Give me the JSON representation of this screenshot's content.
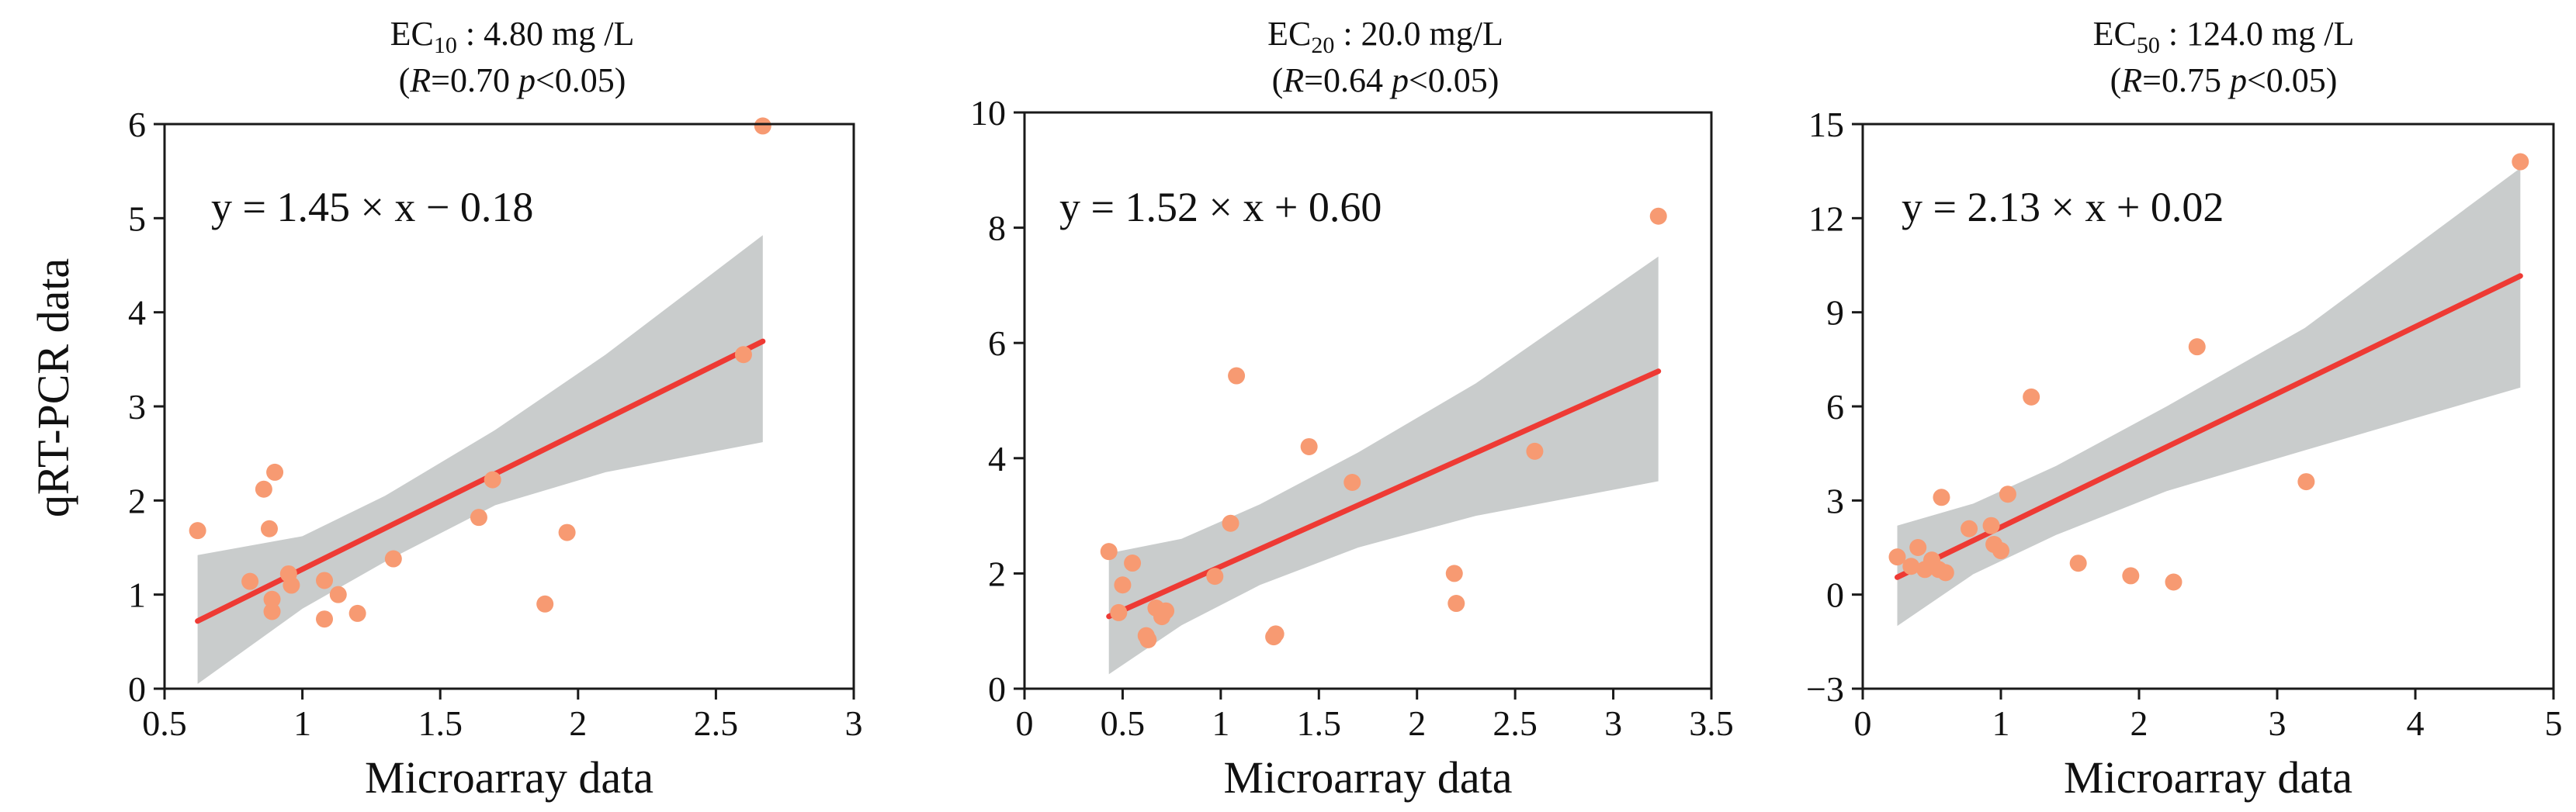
{
  "y_axis_label": "qRT-PCR data",
  "chart_data": [
    {
      "type": "scatter",
      "title_line1_main": "EC",
      "title_line1_sub": "10",
      "title_line1_rest": " : 4.80 mg /L",
      "title_line2_open": "(",
      "title_line2_R": "R",
      "title_line2_val": "=0.70  ",
      "title_line2_p": "p",
      "title_line2_end": "<0.05)",
      "equation": "y = 1.45 × x − 0.18",
      "slope": 1.45,
      "intercept": -0.18,
      "xlabel": "Microarray data",
      "xlim": [
        0.5,
        3
      ],
      "ylim": [
        0,
        6
      ],
      "xticks": [
        0.5,
        1,
        1.5,
        2,
        2.5,
        3
      ],
      "xtick_labels": [
        "0.5",
        "1",
        "1.5",
        "2",
        "2.5",
        "3"
      ],
      "yticks": [
        0,
        1,
        2,
        3,
        4,
        5,
        6
      ],
      "ytick_labels": [
        "0",
        "1",
        "2",
        "3",
        "4",
        "5",
        "6"
      ],
      "fit_x_range": [
        0.62,
        2.67
      ],
      "band": {
        "x": [
          0.62,
          1.0,
          1.3,
          1.7,
          2.1,
          2.67
        ],
        "lower": [
          0.05,
          0.85,
          1.35,
          1.95,
          2.3,
          2.62
        ],
        "upper": [
          1.42,
          1.62,
          2.05,
          2.75,
          3.55,
          4.82
        ]
      },
      "points": [
        {
          "x": 0.62,
          "y": 1.68
        },
        {
          "x": 0.81,
          "y": 1.14
        },
        {
          "x": 0.86,
          "y": 2.12
        },
        {
          "x": 0.88,
          "y": 1.7
        },
        {
          "x": 0.89,
          "y": 0.95
        },
        {
          "x": 0.89,
          "y": 0.82
        },
        {
          "x": 0.9,
          "y": 2.3
        },
        {
          "x": 0.95,
          "y": 1.22
        },
        {
          "x": 0.96,
          "y": 1.1
        },
        {
          "x": 1.08,
          "y": 1.15
        },
        {
          "x": 1.08,
          "y": 0.74
        },
        {
          "x": 1.13,
          "y": 1.0
        },
        {
          "x": 1.2,
          "y": 0.8
        },
        {
          "x": 1.33,
          "y": 1.38
        },
        {
          "x": 1.64,
          "y": 1.82
        },
        {
          "x": 1.69,
          "y": 2.22
        },
        {
          "x": 1.88,
          "y": 0.9
        },
        {
          "x": 1.96,
          "y": 1.66
        },
        {
          "x": 2.6,
          "y": 3.55
        },
        {
          "x": 2.67,
          "y": 5.98
        }
      ]
    },
    {
      "type": "scatter",
      "title_line1_main": "EC",
      "title_line1_sub": "20",
      "title_line1_rest": " : 20.0 mg/L",
      "title_line2_open": "(",
      "title_line2_R": "R",
      "title_line2_val": "=0.64  ",
      "title_line2_p": "p",
      "title_line2_end": "<0.05)",
      "equation": "y = 1.52 × x + 0.60",
      "slope": 1.52,
      "intercept": 0.6,
      "xlabel": "Microarray data",
      "xlim": [
        0,
        3.5
      ],
      "ylim": [
        0,
        10
      ],
      "xticks": [
        0,
        0.5,
        1,
        1.5,
        2,
        2.5,
        3,
        3.5
      ],
      "xtick_labels": [
        "0",
        "0.5",
        "1",
        "1.5",
        "2",
        "2.5",
        "3",
        "3.5"
      ],
      "yticks": [
        0,
        2,
        4,
        6,
        8,
        10
      ],
      "ytick_labels": [
        "0",
        "2",
        "4",
        "6",
        "8",
        "10"
      ],
      "fit_x_range": [
        0.43,
        3.23
      ],
      "band": {
        "x": [
          0.43,
          0.8,
          1.2,
          1.7,
          2.3,
          3.23
        ],
        "lower": [
          0.25,
          1.1,
          1.8,
          2.45,
          3.0,
          3.6
        ],
        "upper": [
          2.35,
          2.6,
          3.2,
          4.1,
          5.3,
          7.5
        ]
      },
      "points": [
        {
          "x": 0.43,
          "y": 2.38
        },
        {
          "x": 0.48,
          "y": 1.32
        },
        {
          "x": 0.5,
          "y": 1.8
        },
        {
          "x": 0.55,
          "y": 2.18
        },
        {
          "x": 0.62,
          "y": 0.92
        },
        {
          "x": 0.63,
          "y": 0.85
        },
        {
          "x": 0.67,
          "y": 1.4
        },
        {
          "x": 0.7,
          "y": 1.25
        },
        {
          "x": 0.72,
          "y": 1.35
        },
        {
          "x": 0.97,
          "y": 1.95
        },
        {
          "x": 1.05,
          "y": 2.87
        },
        {
          "x": 1.08,
          "y": 5.43
        },
        {
          "x": 1.27,
          "y": 0.9
        },
        {
          "x": 1.28,
          "y": 0.95
        },
        {
          "x": 1.45,
          "y": 4.2
        },
        {
          "x": 1.67,
          "y": 3.58
        },
        {
          "x": 2.19,
          "y": 2.0
        },
        {
          "x": 2.2,
          "y": 1.48
        },
        {
          "x": 2.6,
          "y": 4.12
        },
        {
          "x": 3.23,
          "y": 8.2
        }
      ]
    },
    {
      "type": "scatter",
      "title_line1_main": "EC",
      "title_line1_sub": "50",
      "title_line1_rest": " : 124.0 mg /L",
      "title_line2_open": "(",
      "title_line2_R": "R",
      "title_line2_val": "=0.75  ",
      "title_line2_p": "p",
      "title_line2_end": "<0.05)",
      "equation": "y = 2.13 × x + 0.02",
      "slope": 2.13,
      "intercept": 0.02,
      "xlabel": "Microarray data",
      "xlim": [
        0,
        5
      ],
      "ylim": [
        -3,
        15
      ],
      "xticks": [
        0,
        1,
        2,
        3,
        4,
        5
      ],
      "xtick_labels": [
        "0",
        "1",
        "2",
        "3",
        "4",
        "5"
      ],
      "yticks": [
        -3,
        0,
        3,
        6,
        9,
        12,
        15
      ],
      "ytick_labels": [
        "−3",
        "0",
        "3",
        "6",
        "9",
        "12",
        "15"
      ],
      "fit_x_range": [
        0.25,
        4.76
      ],
      "band": {
        "x": [
          0.25,
          0.8,
          1.4,
          2.2,
          3.2,
          4.76
        ],
        "lower": [
          -1.0,
          0.65,
          1.9,
          3.3,
          4.6,
          6.6
        ],
        "upper": [
          2.2,
          2.9,
          4.1,
          6.0,
          8.5,
          13.6
        ]
      },
      "points": [
        {
          "x": 0.25,
          "y": 1.2
        },
        {
          "x": 0.35,
          "y": 0.9
        },
        {
          "x": 0.4,
          "y": 1.5
        },
        {
          "x": 0.45,
          "y": 0.8
        },
        {
          "x": 0.5,
          "y": 1.1
        },
        {
          "x": 0.55,
          "y": 0.8
        },
        {
          "x": 0.57,
          "y": 3.1
        },
        {
          "x": 0.6,
          "y": 0.7
        },
        {
          "x": 0.77,
          "y": 2.1
        },
        {
          "x": 0.93,
          "y": 2.2
        },
        {
          "x": 0.95,
          "y": 1.6
        },
        {
          "x": 1.0,
          "y": 1.4
        },
        {
          "x": 1.05,
          "y": 3.2
        },
        {
          "x": 1.22,
          "y": 6.3
        },
        {
          "x": 1.56,
          "y": 1.0
        },
        {
          "x": 1.94,
          "y": 0.6
        },
        {
          "x": 2.25,
          "y": 0.4
        },
        {
          "x": 2.42,
          "y": 7.9
        },
        {
          "x": 3.21,
          "y": 3.6
        },
        {
          "x": 4.76,
          "y": 13.8
        }
      ]
    }
  ]
}
